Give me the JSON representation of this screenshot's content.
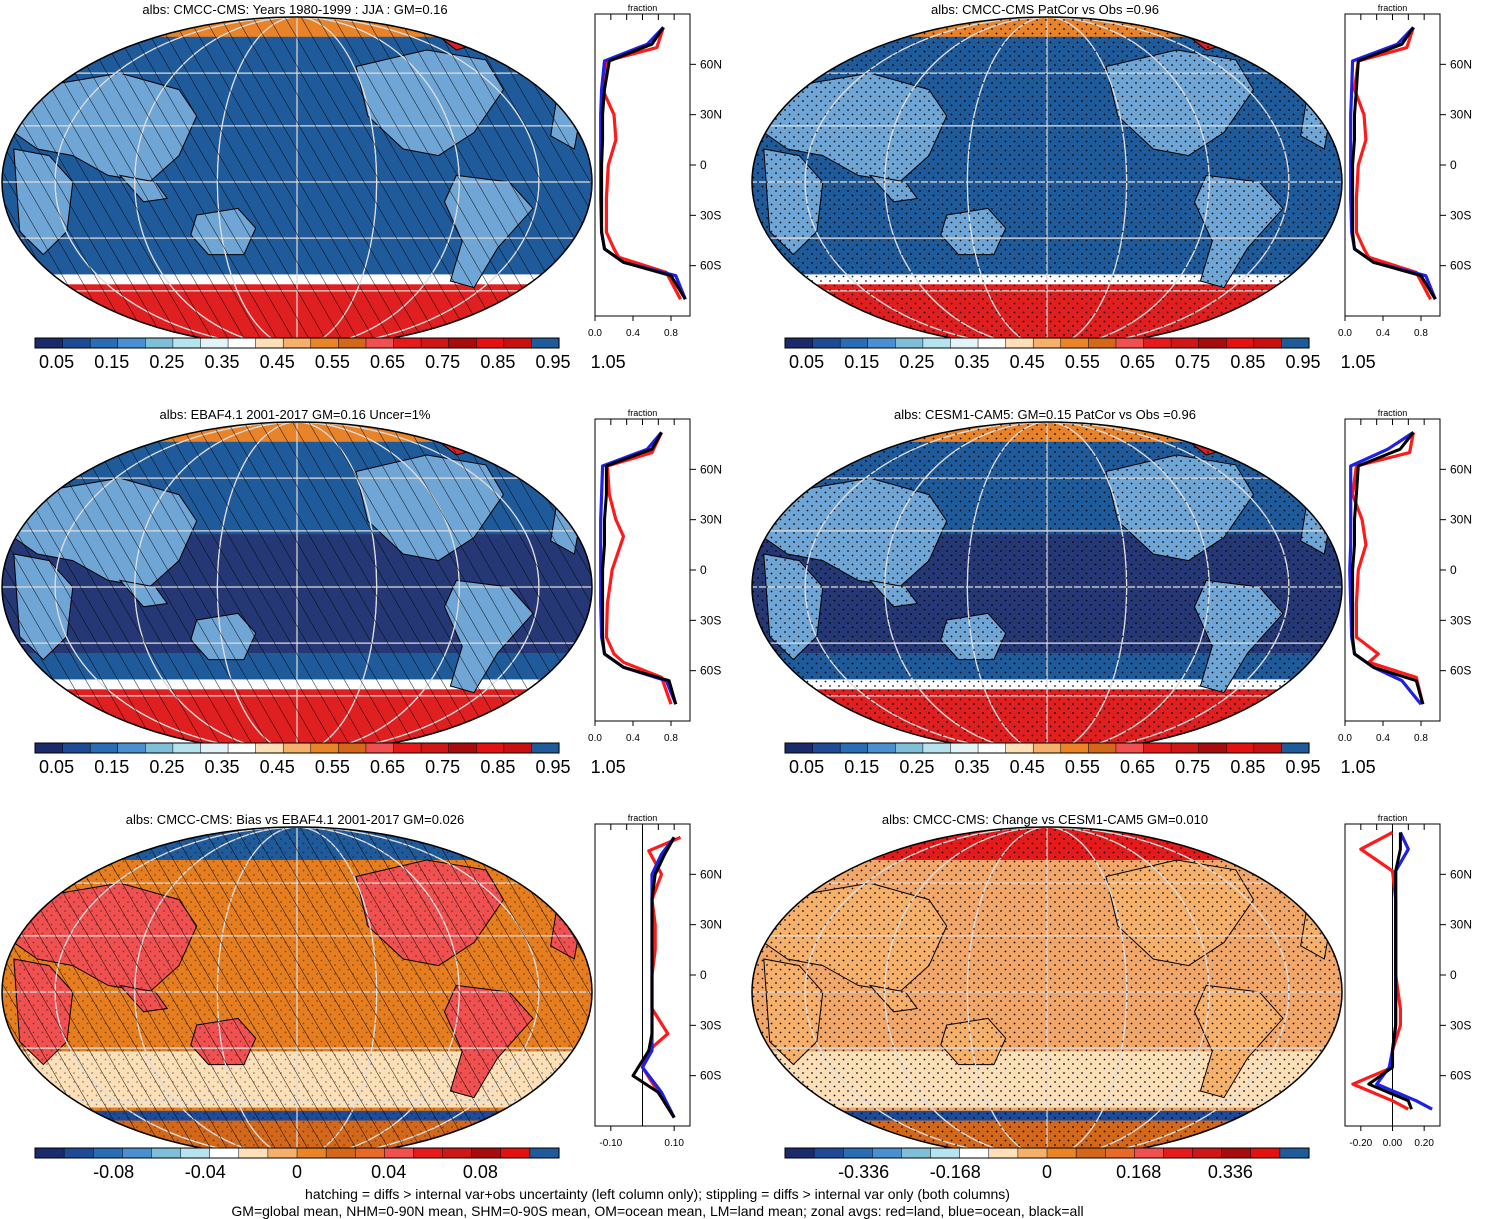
{
  "palette": {
    "seq": [
      "#1b2a6b",
      "#1f4a96",
      "#2a6db4",
      "#4a8fcf",
      "#7fbfd8",
      "#b7e3ee",
      "#e3f4f8",
      "#ffffff",
      "#fde0b8",
      "#f5b06b",
      "#ea8527",
      "#d3681a",
      "#f05050",
      "#e51b1b",
      "#cf1717",
      "#a80d0d",
      "#e31212",
      "#c81010",
      "#1f5a9a"
    ],
    "div": [
      "#1b2a6b",
      "#1f4a96",
      "#2a6db4",
      "#4a8fcf",
      "#7fbfd8",
      "#b7e3ee",
      "#ffffff",
      "#fde0b8",
      "#f5b06b",
      "#ea8527",
      "#d3681a",
      "#e86a2a",
      "#f05050",
      "#e51b1b",
      "#cf1717",
      "#a80d0d",
      "#e31212",
      "#1f5a9a"
    ],
    "ocean_deep": "#1f5a9a",
    "ocean_dark": "#27336f",
    "land_light": "#6fa6d6",
    "ice": "#e02020",
    "bias_bg": "#e67e1f",
    "change_bg": "#f1a66a",
    "red_line": "#ff1a1a",
    "blue_line": "#1f1fe6",
    "black_line": "#000000"
  },
  "panels": [
    {
      "id": "p1",
      "title": "albs: CMCC-CMS: Years 1980-1999 : JJA : GM=0.16",
      "colorbar_labels": [
        "0.05",
        "0.15",
        "0.25",
        "0.35",
        "0.45",
        "0.55",
        "0.65",
        "0.75",
        "0.85",
        "0.95",
        "1.05"
      ],
      "profile": {
        "xlabel": "fraction",
        "xticks": [
          "0.0",
          "0.4",
          "0.8"
        ],
        "xlim": [
          0,
          1.0
        ]
      }
    },
    {
      "id": "p2",
      "title": "albs: CMCC-CMS PatCor vs Obs =0.96",
      "colorbar_labels": [
        "0.05",
        "0.15",
        "0.25",
        "0.35",
        "0.45",
        "0.55",
        "0.65",
        "0.75",
        "0.85",
        "0.95",
        "1.05"
      ],
      "profile": {
        "xlabel": "fraction",
        "xticks": [
          "0.0",
          "0.4",
          "0.8"
        ],
        "xlim": [
          0,
          1.0
        ]
      }
    },
    {
      "id": "p3",
      "title": "albs: EBAF4.1 2001-2017 GM=0.16 Uncer=1%",
      "colorbar_labels": [
        "0.05",
        "0.15",
        "0.25",
        "0.35",
        "0.45",
        "0.55",
        "0.65",
        "0.75",
        "0.85",
        "0.95",
        "1.05"
      ],
      "profile": {
        "xlabel": "fraction",
        "xticks": [
          "0.0",
          "0.4",
          "0.8"
        ],
        "xlim": [
          0,
          1.0
        ]
      }
    },
    {
      "id": "p4",
      "title": "albs: CESM1-CAM5: GM=0.15 PatCor vs Obs =0.96",
      "colorbar_labels": [
        "0.05",
        "0.15",
        "0.25",
        "0.35",
        "0.45",
        "0.55",
        "0.65",
        "0.75",
        "0.85",
        "0.95",
        "1.05"
      ],
      "profile": {
        "xlabel": "fraction",
        "xticks": [
          "0.0",
          "0.4",
          "0.8"
        ],
        "xlim": [
          0,
          1.0
        ]
      }
    },
    {
      "id": "p5",
      "title": "albs: CMCC-CMS: Bias vs EBAF4.1 2001-2017 GM=0.026",
      "colorbar_labels": [
        "-0.08",
        "-0.04",
        "0",
        "0.04",
        "0.08"
      ],
      "profile": {
        "xlabel": "fraction",
        "xticks": [
          "-0.10",
          "0.10"
        ],
        "xlim": [
          -0.15,
          0.15
        ]
      }
    },
    {
      "id": "p6",
      "title": "albs: CMCC-CMS: Change vs CESM1-CAM5 GM=0.010",
      "colorbar_labels": [
        "-0.336",
        "-0.168",
        "0",
        "0.168",
        "0.336"
      ],
      "profile": {
        "xlabel": "fraction",
        "xticks": [
          "-0.20",
          "0.00",
          "0.20"
        ],
        "xlim": [
          -0.3,
          0.3
        ]
      }
    }
  ],
  "lat_labels": [
    "60N",
    "30N",
    "0",
    "30S",
    "60S"
  ],
  "footer": {
    "line1": "hatching = diffs > internal var+obs uncertainty (left column only); stippling = diffs > internal var only (both columns)",
    "line2": "GM=global mean, NHM=0-90N mean, SHM=0-90S mean, OM=ocean mean, LM=land mean; zonal avgs: red=land, blue=ocean, black=all"
  },
  "chart_data": [
    {
      "type": "line",
      "panel": "p1",
      "xlabel": "fraction",
      "y_axis": "latitude",
      "ylim": [
        -90,
        90
      ],
      "series": [
        {
          "name": "red=land",
          "color": "red",
          "x": [
            0.72,
            0.65,
            0.12,
            0.08,
            0.2,
            0.22,
            0.14,
            0.12,
            0.12,
            0.2,
            0.25,
            0.75,
            0.9
          ],
          "y": [
            82,
            70,
            62,
            45,
            30,
            15,
            0,
            -20,
            -40,
            -50,
            -55,
            -64,
            -80
          ]
        },
        {
          "name": "blue=ocean",
          "color": "blue",
          "x": [
            0.72,
            0.55,
            0.1,
            0.07,
            0.06,
            0.06,
            0.06,
            0.06,
            0.07,
            0.1,
            0.3,
            0.85,
            0.95
          ],
          "y": [
            82,
            72,
            62,
            45,
            30,
            15,
            0,
            -20,
            -40,
            -50,
            -58,
            -66,
            -80
          ]
        },
        {
          "name": "black=all",
          "color": "black",
          "x": [
            0.72,
            0.6,
            0.15,
            0.1,
            0.08,
            0.08,
            0.07,
            0.07,
            0.07,
            0.1,
            0.3,
            0.8,
            0.95
          ],
          "y": [
            82,
            72,
            62,
            45,
            30,
            15,
            0,
            -20,
            -40,
            -50,
            -58,
            -66,
            -80
          ]
        }
      ]
    },
    {
      "type": "line",
      "panel": "p2",
      "xlabel": "fraction",
      "y_axis": "latitude",
      "ylim": [
        -90,
        90
      ],
      "series": [
        {
          "name": "red=land",
          "color": "red",
          "x": [
            0.72,
            0.65,
            0.14,
            0.1,
            0.2,
            0.22,
            0.14,
            0.12,
            0.12,
            0.2,
            0.25,
            0.75,
            0.9
          ],
          "y": [
            82,
            70,
            62,
            45,
            30,
            15,
            0,
            -20,
            -40,
            -50,
            -55,
            -64,
            -80
          ]
        },
        {
          "name": "blue=ocean",
          "color": "blue",
          "x": [
            0.72,
            0.55,
            0.08,
            0.07,
            0.06,
            0.06,
            0.06,
            0.06,
            0.07,
            0.1,
            0.3,
            0.85,
            0.95
          ],
          "y": [
            82,
            72,
            62,
            45,
            30,
            15,
            0,
            -20,
            -40,
            -50,
            -58,
            -66,
            -80
          ]
        },
        {
          "name": "black=all",
          "color": "black",
          "x": [
            0.72,
            0.6,
            0.14,
            0.12,
            0.1,
            0.1,
            0.08,
            0.08,
            0.08,
            0.1,
            0.3,
            0.8,
            0.95
          ],
          "y": [
            82,
            72,
            62,
            45,
            30,
            15,
            0,
            -20,
            -40,
            -50,
            -58,
            -66,
            -80
          ]
        }
      ]
    },
    {
      "type": "line",
      "panel": "p3",
      "xlabel": "fraction",
      "y_axis": "latitude",
      "ylim": [
        -90,
        90
      ],
      "series": [
        {
          "name": "red=land",
          "color": "red",
          "x": [
            0.7,
            0.6,
            0.13,
            0.15,
            0.22,
            0.3,
            0.18,
            0.13,
            0.12,
            0.2,
            0.3,
            0.7,
            0.8
          ],
          "y": [
            82,
            70,
            62,
            45,
            30,
            20,
            0,
            -20,
            -40,
            -50,
            -55,
            -64,
            -80
          ]
        },
        {
          "name": "blue=ocean",
          "color": "blue",
          "x": [
            0.7,
            0.55,
            0.08,
            0.07,
            0.06,
            0.06,
            0.06,
            0.06,
            0.07,
            0.1,
            0.3,
            0.75,
            0.85
          ],
          "y": [
            82,
            72,
            62,
            45,
            30,
            15,
            0,
            -20,
            -40,
            -50,
            -58,
            -66,
            -80
          ]
        },
        {
          "name": "black=all",
          "color": "black",
          "x": [
            0.7,
            0.6,
            0.12,
            0.12,
            0.1,
            0.1,
            0.08,
            0.08,
            0.08,
            0.1,
            0.3,
            0.78,
            0.85
          ],
          "y": [
            82,
            72,
            62,
            45,
            30,
            15,
            0,
            -20,
            -40,
            -50,
            -58,
            -66,
            -80
          ]
        }
      ]
    },
    {
      "type": "line",
      "panel": "p4",
      "xlabel": "fraction",
      "y_axis": "latitude",
      "ylim": [
        -90,
        90
      ],
      "series": [
        {
          "name": "red=land",
          "color": "red",
          "x": [
            0.72,
            0.68,
            0.12,
            0.08,
            0.18,
            0.22,
            0.14,
            0.12,
            0.12,
            0.35,
            0.25,
            0.75,
            0.82
          ],
          "y": [
            82,
            70,
            62,
            45,
            30,
            15,
            0,
            -20,
            -40,
            -50,
            -55,
            -64,
            -80
          ]
        },
        {
          "name": "blue=ocean",
          "color": "blue",
          "x": [
            0.72,
            0.45,
            0.06,
            0.06,
            0.06,
            0.06,
            0.05,
            0.06,
            0.07,
            0.1,
            0.3,
            0.6,
            0.8
          ],
          "y": [
            82,
            72,
            62,
            45,
            30,
            15,
            0,
            -20,
            -40,
            -50,
            -58,
            -66,
            -80
          ]
        },
        {
          "name": "black=all",
          "color": "black",
          "x": [
            0.72,
            0.58,
            0.14,
            0.12,
            0.1,
            0.1,
            0.08,
            0.08,
            0.08,
            0.1,
            0.3,
            0.75,
            0.82
          ],
          "y": [
            82,
            72,
            62,
            45,
            30,
            15,
            0,
            -20,
            -40,
            -50,
            -58,
            -66,
            -80
          ]
        }
      ]
    },
    {
      "type": "line",
      "panel": "p5",
      "xlabel": "fraction",
      "y_axis": "latitude",
      "ylim": [
        -90,
        90
      ],
      "series": [
        {
          "name": "red=land",
          "color": "red",
          "x": [
            0.12,
            0.02,
            0.06,
            0.03,
            0.04,
            0.04,
            0.03,
            0.03,
            0.08,
            0.02,
            0.0,
            0.05,
            0.1
          ],
          "y": [
            82,
            74,
            60,
            45,
            30,
            15,
            0,
            -20,
            -35,
            -45,
            -55,
            -70,
            -85
          ]
        },
        {
          "name": "blue=ocean",
          "color": "blue",
          "x": [
            0.1,
            0.06,
            0.03,
            0.03,
            0.03,
            0.03,
            0.03,
            0.03,
            0.03,
            0.03,
            0.0,
            0.06,
            0.1
          ],
          "y": [
            82,
            72,
            60,
            45,
            30,
            15,
            0,
            -20,
            -35,
            -45,
            -55,
            -70,
            -85
          ]
        },
        {
          "name": "black=all",
          "color": "black",
          "x": [
            0.1,
            0.07,
            0.04,
            0.03,
            0.03,
            0.03,
            0.03,
            0.03,
            0.03,
            0.02,
            -0.03,
            0.05,
            0.1
          ],
          "y": [
            82,
            72,
            60,
            45,
            30,
            15,
            0,
            -20,
            -35,
            -45,
            -60,
            -70,
            -85
          ]
        }
      ]
    },
    {
      "type": "line",
      "panel": "p6",
      "xlabel": "fraction",
      "y_axis": "latitude",
      "ylim": [
        -90,
        90
      ],
      "series": [
        {
          "name": "red=land",
          "color": "red",
          "x": [
            0.0,
            -0.2,
            0.0,
            0.02,
            0.02,
            0.02,
            0.02,
            0.05,
            0.05,
            0.0,
            0.0,
            -0.25,
            0.0,
            0.1
          ],
          "y": [
            85,
            75,
            62,
            45,
            30,
            15,
            0,
            -20,
            -30,
            -45,
            -55,
            -65,
            -75,
            -80
          ]
        },
        {
          "name": "blue=ocean",
          "color": "blue",
          "x": [
            0.05,
            0.1,
            0.02,
            0.02,
            0.02,
            0.02,
            0.02,
            0.02,
            0.02,
            0.0,
            -0.02,
            -0.1,
            0.15,
            0.25
          ],
          "y": [
            85,
            75,
            62,
            45,
            30,
            15,
            0,
            -20,
            -30,
            -45,
            -55,
            -65,
            -75,
            -80
          ]
        },
        {
          "name": "black=all",
          "color": "black",
          "x": [
            0.05,
            0.05,
            0.02,
            0.02,
            0.02,
            0.02,
            0.02,
            0.02,
            0.02,
            0.0,
            0.0,
            -0.15,
            0.1,
            0.12
          ],
          "y": [
            85,
            75,
            62,
            45,
            30,
            15,
            0,
            -20,
            -30,
            -45,
            -55,
            -65,
            -75,
            -80
          ]
        }
      ]
    }
  ]
}
